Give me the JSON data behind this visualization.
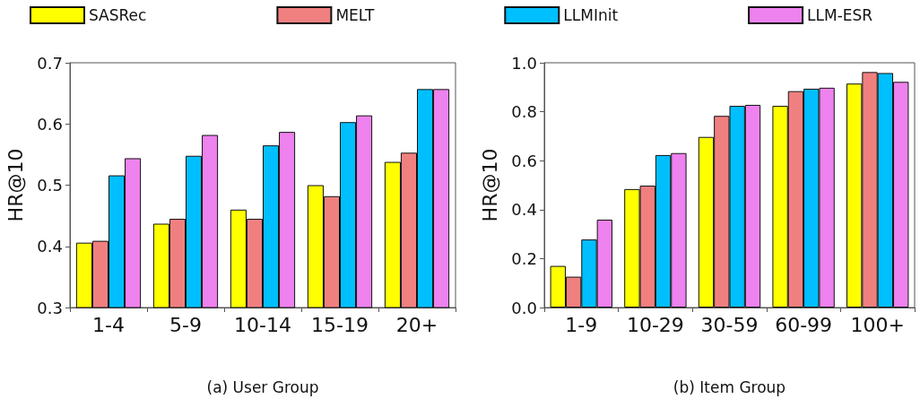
{
  "chart_data": [
    {
      "type": "bar",
      "xlabel": "(a) User Group",
      "ylabel": "HR@10",
      "categories": [
        "1-4",
        "5-9",
        "10-14",
        "15-19",
        "20+"
      ],
      "series": [
        {
          "name": "SASRec",
          "color": "#ffff00",
          "values": [
            0.406,
            0.437,
            0.46,
            0.5,
            0.538
          ]
        },
        {
          "name": "MELT",
          "color": "#f08080",
          "values": [
            0.409,
            0.445,
            0.445,
            0.482,
            0.553
          ]
        },
        {
          "name": "LLMInit",
          "color": "#00bfff",
          "values": [
            0.516,
            0.548,
            0.565,
            0.603,
            0.657
          ]
        },
        {
          "name": "LLM-ESR",
          "color": "#ee82ee",
          "values": [
            0.544,
            0.582,
            0.587,
            0.614,
            0.657
          ]
        }
      ],
      "ylim": [
        0.3,
        0.7
      ],
      "yticks": [
        0.3,
        0.4,
        0.5,
        0.6,
        0.7
      ],
      "grid": false,
      "legend": "top"
    },
    {
      "type": "bar",
      "xlabel": "(b) Item Group",
      "ylabel": "HR@10",
      "categories": [
        "1-9",
        "10-29",
        "30-59",
        "60-99",
        "100+"
      ],
      "series": [
        {
          "name": "SASRec",
          "color": "#ffff00",
          "values": [
            0.17,
            0.484,
            0.697,
            0.824,
            0.915
          ]
        },
        {
          "name": "MELT",
          "color": "#f08080",
          "values": [
            0.126,
            0.498,
            0.783,
            0.884,
            0.962
          ]
        },
        {
          "name": "LLMInit",
          "color": "#00bfff",
          "values": [
            0.278,
            0.623,
            0.824,
            0.894,
            0.958
          ]
        },
        {
          "name": "LLM-ESR",
          "color": "#ee82ee",
          "values": [
            0.359,
            0.631,
            0.828,
            0.898,
            0.922
          ]
        }
      ],
      "ylim": [
        0,
        1.0
      ],
      "yticks": [
        {
          "value": 0,
          "label": "0.0"
        },
        0.2,
        0.4,
        0.6,
        0.8,
        {
          "value": 1.0,
          "label": "1.0"
        }
      ],
      "grid": false,
      "legend": "top"
    }
  ]
}
